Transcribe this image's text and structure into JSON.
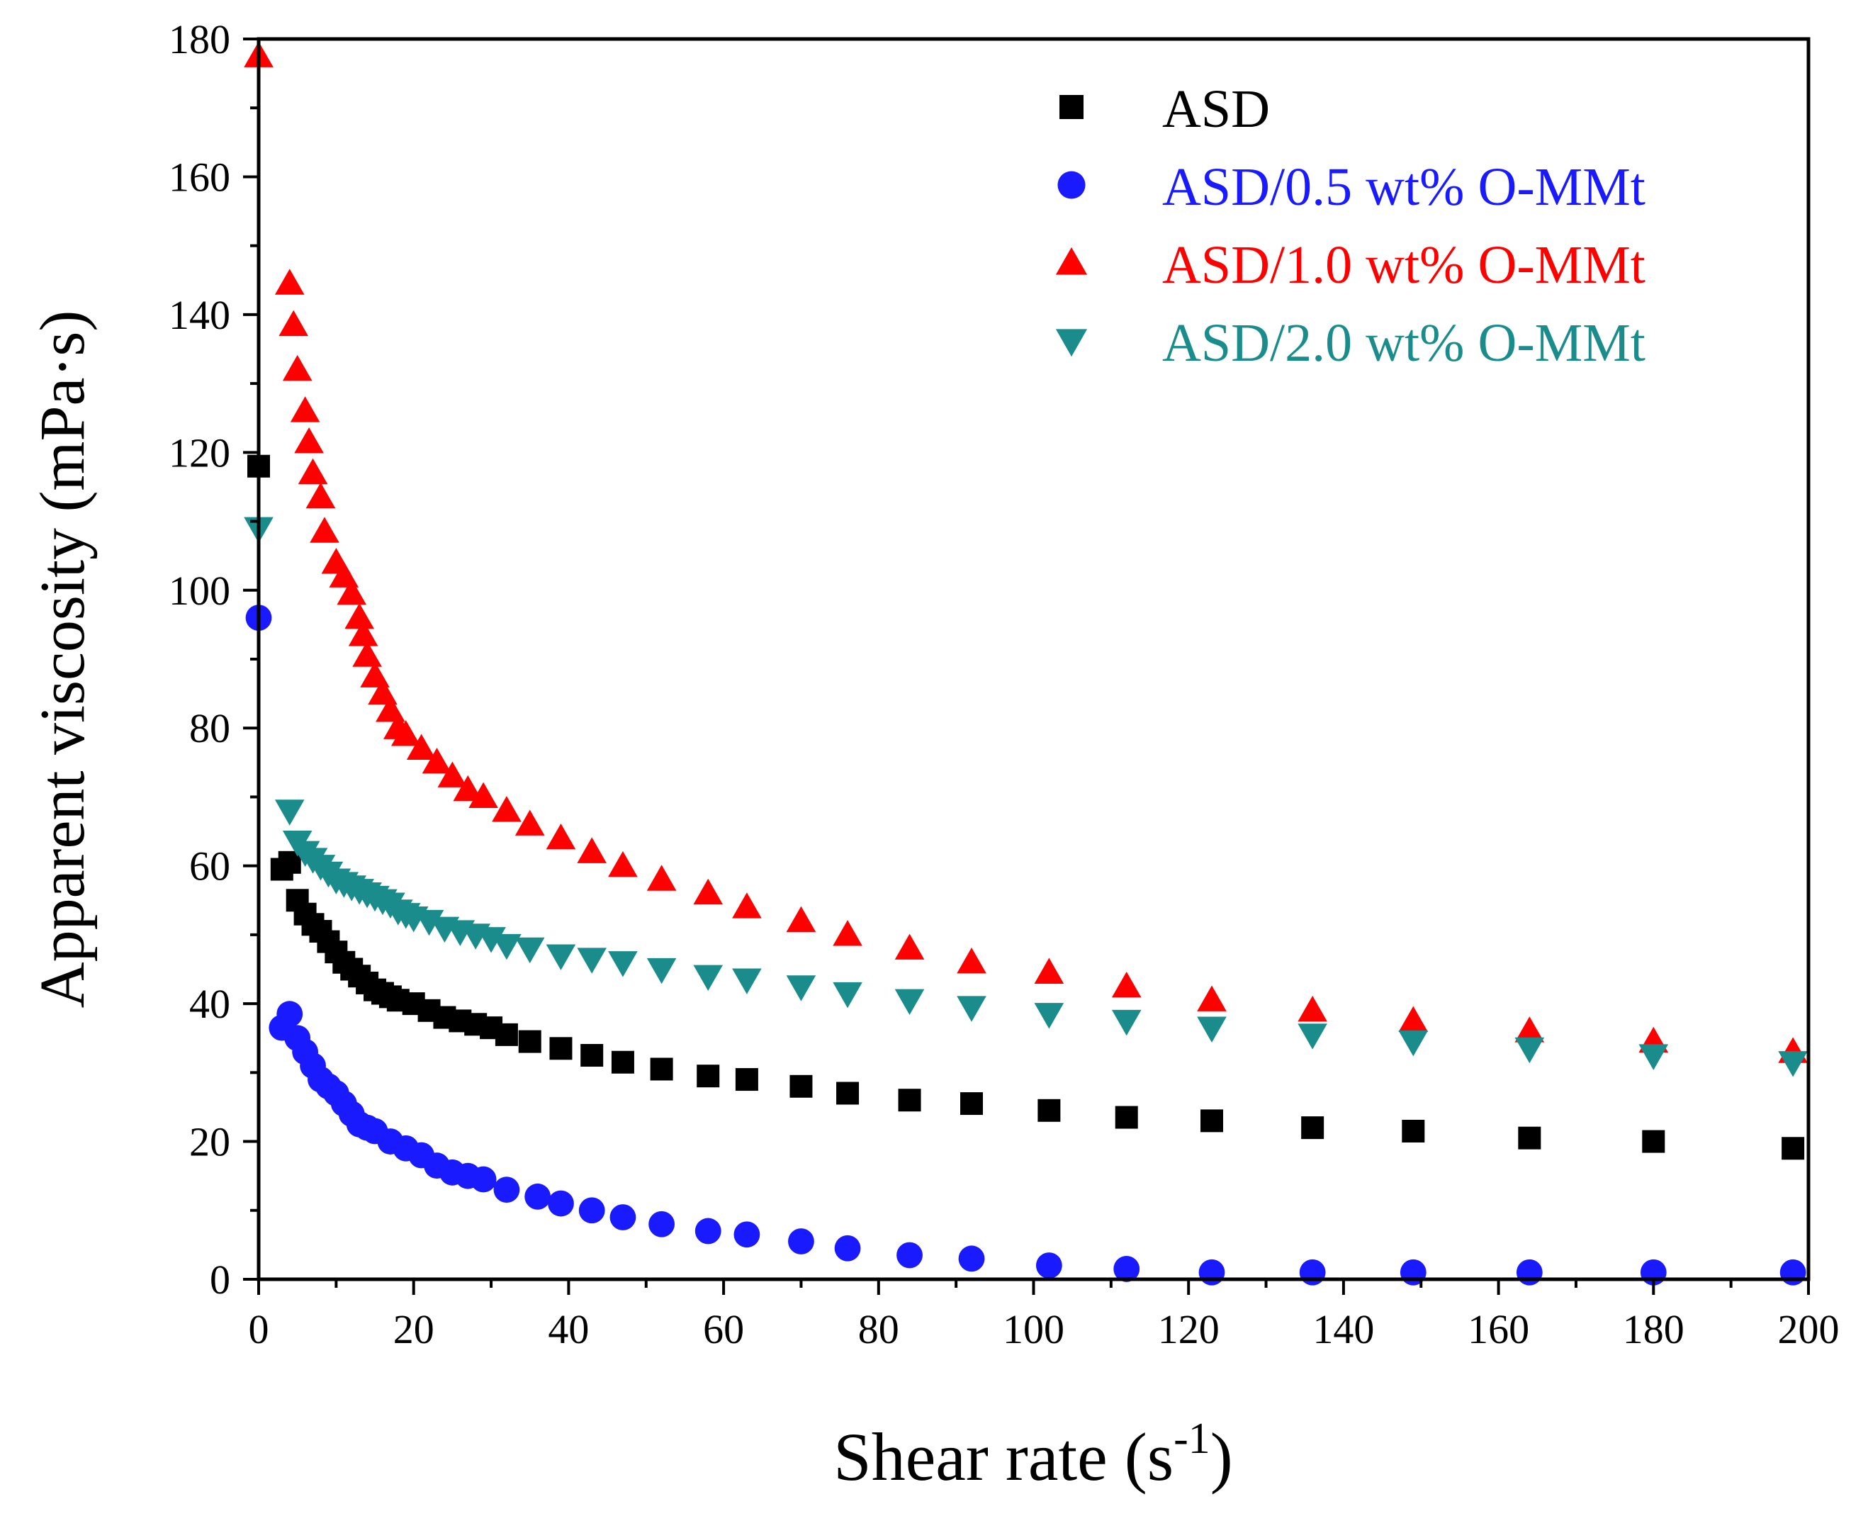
{
  "chart_data": {
    "type": "scatter",
    "xlabel": "Shear rate (s",
    "xlabel_sup": "-1",
    "xlabel_end": ")",
    "ylabel": "Apparent viscosity (mPa·s)",
    "xlim": [
      0,
      200
    ],
    "ylim": [
      0,
      180
    ],
    "xticks": [
      0,
      20,
      40,
      60,
      80,
      100,
      120,
      140,
      160,
      180,
      200
    ],
    "yticks": [
      0,
      20,
      40,
      60,
      80,
      100,
      120,
      140,
      160,
      180
    ],
    "grid": false,
    "legend_position": "top-right",
    "series": [
      {
        "name": "ASD",
        "marker": "square",
        "color": "#000000",
        "x": [
          0,
          3,
          4,
          5,
          6,
          7,
          8,
          9,
          10,
          11,
          12,
          13,
          14,
          15,
          16,
          17,
          18,
          20,
          22,
          24,
          26,
          28,
          30,
          32,
          35,
          39,
          43,
          47,
          52,
          58,
          63,
          70,
          76,
          84,
          92,
          102,
          112,
          123,
          136,
          149,
          164,
          180,
          198
        ],
        "y": [
          118,
          59.5,
          60.5,
          55,
          53,
          51.5,
          50.5,
          49,
          47.5,
          46,
          45,
          44,
          43,
          42,
          41.5,
          41,
          40.5,
          40,
          39,
          38,
          37.5,
          37,
          36.5,
          35.5,
          34.5,
          33.5,
          32.5,
          31.5,
          30.5,
          29.5,
          29,
          28,
          27,
          26,
          25.5,
          24.5,
          23.5,
          23,
          22,
          21.5,
          20.5,
          20,
          19
        ]
      },
      {
        "name": "ASD/0.5 wt% O-MMt",
        "marker": "circle",
        "color": "#1a1aff",
        "x": [
          0,
          3,
          4,
          5,
          6,
          7,
          8,
          9,
          10,
          11,
          12,
          13,
          14,
          15,
          17,
          19,
          21,
          23,
          25,
          27,
          29,
          32,
          36,
          39,
          43,
          47,
          52,
          58,
          63,
          70,
          76,
          84,
          92,
          102,
          112,
          123,
          136,
          149,
          164,
          180,
          198
        ],
        "y": [
          96,
          36.5,
          38.5,
          35,
          33,
          31,
          29,
          28,
          27,
          25.5,
          24,
          22.5,
          22,
          21.5,
          20,
          19,
          18,
          16.5,
          15.5,
          15,
          14.5,
          13,
          12,
          11,
          10,
          9,
          8,
          7,
          6.5,
          5.5,
          4.5,
          3.5,
          3,
          2,
          1.5,
          1,
          1,
          1,
          1,
          1,
          1
        ]
      },
      {
        "name": "ASD/1.0 wt% O-MMt",
        "marker": "triangle-up",
        "color": "#ff0000",
        "x": [
          0,
          4,
          4.5,
          5,
          6,
          6.5,
          7,
          8,
          8.5,
          10,
          11,
          12,
          13,
          13.5,
          14,
          15,
          16,
          17,
          18,
          19,
          21,
          23,
          25,
          27,
          29,
          32,
          35,
          39,
          43,
          47,
          52,
          58,
          63,
          70,
          76,
          84,
          92,
          102,
          112,
          123,
          136,
          149,
          164,
          180,
          198
        ],
        "y": [
          177.5,
          144.5,
          138.5,
          132,
          126,
          121.5,
          117,
          113.5,
          108.5,
          104,
          102,
          99.5,
          96,
          93.5,
          90.5,
          87.5,
          85,
          82.5,
          80,
          79,
          77,
          75,
          73,
          71,
          70,
          68,
          66,
          64,
          62,
          60,
          58,
          56,
          54,
          52,
          50,
          48,
          46,
          44.5,
          42.5,
          40.5,
          39,
          37.5,
          36,
          34.5,
          33
        ]
      },
      {
        "name": "ASD/2.0 wt% O-MMt",
        "marker": "triangle-down",
        "color": "#1a8c8c",
        "x": [
          0,
          4,
          5,
          6,
          7,
          8,
          9,
          10,
          11,
          12,
          13,
          14,
          15,
          16,
          17,
          18,
          19,
          20,
          22,
          24,
          26,
          28,
          30,
          32,
          35,
          39,
          43,
          47,
          52,
          58,
          63,
          70,
          76,
          84,
          92,
          102,
          112,
          123,
          136,
          149,
          164,
          180,
          198
        ],
        "y": [
          109,
          68,
          63.5,
          62,
          61,
          60,
          59,
          58,
          57.5,
          57,
          56.5,
          56,
          55.5,
          55,
          54.5,
          53.5,
          53,
          52.5,
          52,
          51,
          50.5,
          50,
          49.5,
          48.5,
          48,
          47,
          46.5,
          46,
          45,
          44,
          43.5,
          42.5,
          41.5,
          40.5,
          39.5,
          38.5,
          37.5,
          36.5,
          35.5,
          34.5,
          33.5,
          32.5,
          31.5
        ]
      }
    ]
  }
}
